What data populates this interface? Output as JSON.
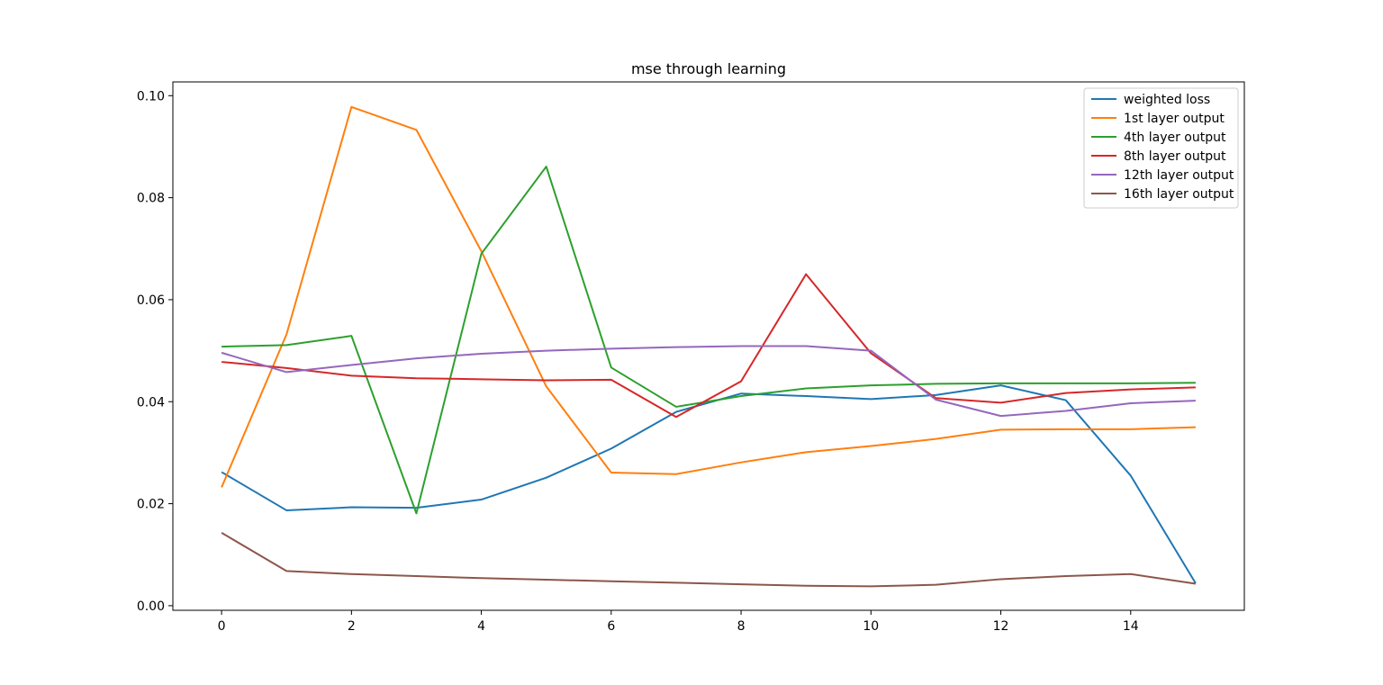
{
  "chart_data": {
    "type": "line",
    "title": "mse through learning",
    "xlabel": "",
    "ylabel": "",
    "xlim": [
      -0.75,
      15.75
    ],
    "ylim": [
      -0.0009,
      0.1027
    ],
    "xticks": [
      0,
      2,
      4,
      6,
      8,
      10,
      12,
      14
    ],
    "xtick_labels": [
      "0",
      "2",
      "4",
      "6",
      "8",
      "10",
      "12",
      "14"
    ],
    "yticks": [
      0.0,
      0.02,
      0.04,
      0.06,
      0.08,
      0.1
    ],
    "ytick_labels": [
      "0.00",
      "0.02",
      "0.04",
      "0.06",
      "0.08",
      "0.10"
    ],
    "grid": false,
    "legend_position": "top-right",
    "x": [
      0,
      1,
      2,
      3,
      4,
      5,
      6,
      7,
      8,
      9,
      10,
      11,
      12,
      13,
      14,
      15
    ],
    "series": [
      {
        "name": "weighted loss",
        "color": "#1f77b4",
        "values": [
          0.0262,
          0.0187,
          0.0193,
          0.0192,
          0.0208,
          0.0251,
          0.0308,
          0.038,
          0.0416,
          0.0411,
          0.0405,
          0.0413,
          0.0432,
          0.0403,
          0.0255,
          0.0044
        ]
      },
      {
        "name": "1st layer output",
        "color": "#ff7f0e",
        "values": [
          0.0232,
          0.0532,
          0.0978,
          0.0933,
          0.0695,
          0.043,
          0.0261,
          0.0258,
          0.0281,
          0.0301,
          0.0313,
          0.0327,
          0.0345,
          0.0346,
          0.0346,
          0.035
        ]
      },
      {
        "name": "4th layer output",
        "color": "#2ca02c",
        "values": [
          0.0508,
          0.0511,
          0.0529,
          0.0181,
          0.069,
          0.0861,
          0.0467,
          0.039,
          0.0411,
          0.0426,
          0.0432,
          0.0435,
          0.0436,
          0.0436,
          0.0436,
          0.0437
        ]
      },
      {
        "name": "8th layer output",
        "color": "#d62728",
        "values": [
          0.0478,
          0.0466,
          0.0451,
          0.0446,
          0.0444,
          0.0442,
          0.0443,
          0.037,
          0.044,
          0.065,
          0.0495,
          0.0407,
          0.0398,
          0.0417,
          0.0424,
          0.0428
        ]
      },
      {
        "name": "12th layer output",
        "color": "#9467bd",
        "values": [
          0.0496,
          0.0458,
          0.0472,
          0.0485,
          0.0494,
          0.05,
          0.0504,
          0.0507,
          0.0509,
          0.0509,
          0.05,
          0.0404,
          0.0372,
          0.0382,
          0.0397,
          0.0402
        ]
      },
      {
        "name": "16th layer output",
        "color": "#8c564b",
        "values": [
          0.0143,
          0.0068,
          0.0062,
          0.0058,
          0.0054,
          0.0051,
          0.0048,
          0.0045,
          0.0042,
          0.0039,
          0.0038,
          0.0041,
          0.0052,
          0.0058,
          0.0062,
          0.0043
        ]
      }
    ]
  }
}
